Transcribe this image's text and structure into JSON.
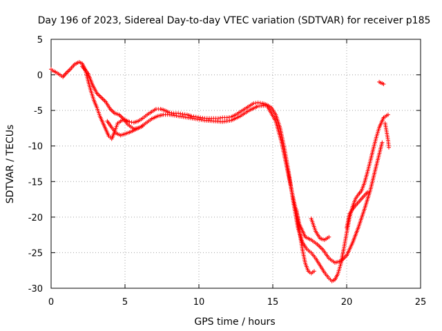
{
  "chart_data": {
    "type": "scatter",
    "title": "Day 196 of 2023, Sidereal Day-to-day VTEC variation (SDTVAR) for receiver p185",
    "xlabel": "GPS time / hours",
    "ylabel": "SDTVAR / TECUs",
    "xlim": [
      0,
      25
    ],
    "ylim": [
      -30,
      5
    ],
    "xticks": [
      "0",
      "5",
      "10",
      "15",
      "20",
      "25"
    ],
    "yticks": [
      "5",
      "0",
      "-5",
      "-10",
      "-15",
      "-20",
      "-25",
      "-30"
    ],
    "grid": true,
    "marker": "+",
    "color": "#ff0000",
    "series": [
      {
        "x": [
          0.0,
          0.1,
          0.3,
          0.6,
          0.8,
          1.0,
          1.3,
          1.6,
          1.9,
          2.1,
          2.3,
          2.5,
          2.7,
          2.9,
          3.1,
          3.3,
          3.6,
          3.9,
          4.1,
          4.3,
          4.5,
          4.8,
          5.0,
          5.3,
          5.6,
          5.9,
          6.2,
          6.5,
          6.8,
          7.1,
          7.4,
          7.7,
          8.0,
          8.3,
          8.6,
          8.9,
          9.2,
          9.5,
          9.8,
          10.1,
          10.4,
          10.7,
          11.0,
          11.3,
          11.6,
          11.9,
          12.2,
          12.5,
          12.8,
          13.1,
          13.4,
          13.7,
          14.0,
          14.3,
          14.6,
          14.9,
          15.2,
          15.5,
          15.8,
          16.1,
          16.4,
          16.7,
          17.0,
          17.3,
          17.6,
          17.9,
          18.2,
          18.5,
          18.8,
          19.0,
          19.2,
          19.4,
          19.6,
          19.8,
          20.0,
          20.2,
          20.4,
          20.6,
          20.8,
          21.0,
          21.2,
          21.4,
          21.6,
          21.8,
          22.0,
          22.2,
          22.5,
          22.8
        ],
        "y": [
          0.8,
          0.6,
          0.4,
          0.0,
          -0.3,
          0.2,
          0.8,
          1.5,
          1.8,
          1.6,
          0.8,
          -0.8,
          -2.3,
          -3.6,
          -4.6,
          -5.8,
          -7.2,
          -8.6,
          -9.0,
          -8.0,
          -6.8,
          -6.4,
          -6.3,
          -6.6,
          -6.7,
          -6.5,
          -6.1,
          -5.6,
          -5.2,
          -4.8,
          -4.8,
          -5.0,
          -5.3,
          -5.4,
          -5.4,
          -5.5,
          -5.6,
          -5.8,
          -5.9,
          -6.0,
          -6.1,
          -6.1,
          -6.1,
          -6.1,
          -6.0,
          -6.0,
          -5.9,
          -5.6,
          -5.2,
          -4.8,
          -4.4,
          -4.0,
          -3.9,
          -4.0,
          -4.2,
          -4.6,
          -5.6,
          -7.5,
          -10.5,
          -14.0,
          -18.0,
          -21.5,
          -23.5,
          -24.5,
          -25.0,
          -25.8,
          -26.8,
          -27.8,
          -28.6,
          -29.0,
          -28.8,
          -28.0,
          -26.6,
          -24.5,
          -22.2,
          -20.0,
          -18.5,
          -17.4,
          -16.8,
          -16.3,
          -15.2,
          -13.7,
          -12.1,
          -10.4,
          -8.8,
          -7.4,
          -6.0,
          -5.6
        ]
      },
      {
        "x": [
          2.1,
          2.5,
          2.8,
          3.1,
          3.4,
          3.7,
          4.0,
          4.3,
          4.6,
          4.9,
          5.2,
          5.6,
          6.0,
          6.4,
          6.8,
          7.2,
          7.6,
          8.0,
          8.6,
          9.2,
          9.8,
          10.4,
          11.0,
          11.6,
          12.2,
          12.8,
          13.4,
          14.0,
          14.6,
          15.2,
          15.6,
          16.0,
          16.4,
          16.8,
          17.2,
          17.6,
          18.0,
          18.4,
          18.8,
          19.2,
          19.6,
          20.0,
          20.4,
          20.8,
          21.2,
          21.6,
          22.0,
          22.4
        ],
        "y": [
          1.2,
          0.2,
          -1.4,
          -2.6,
          -3.2,
          -3.8,
          -4.8,
          -5.4,
          -5.6,
          -6.2,
          -7.0,
          -7.6,
          -7.4,
          -6.8,
          -6.2,
          -5.8,
          -5.6,
          -5.6,
          -5.8,
          -6.0,
          -6.2,
          -6.4,
          -6.5,
          -6.6,
          -6.4,
          -5.8,
          -5.0,
          -4.4,
          -4.3,
          -6.5,
          -9.5,
          -13.5,
          -17.5,
          -21.0,
          -22.8,
          -23.2,
          -23.8,
          -24.6,
          -25.8,
          -26.4,
          -26.2,
          -25.4,
          -23.6,
          -21.4,
          -18.9,
          -16.2,
          -12.8,
          -9.5
        ]
      },
      {
        "x": [
          3.8,
          4.1,
          4.4,
          4.7,
          5.0,
          5.4,
          5.8,
          6.2
        ],
        "y": [
          -6.5,
          -7.4,
          -8.2,
          -8.5,
          -8.3,
          -8.0,
          -7.6,
          -7.2
        ]
      },
      {
        "x": [
          16.6,
          16.8,
          17.0,
          17.2,
          17.4,
          17.6,
          17.8
        ],
        "y": [
          -19.0,
          -22.0,
          -24.5,
          -26.5,
          -27.6,
          -27.9,
          -27.6
        ]
      },
      {
        "x": [
          22.2,
          22.3,
          22.4,
          22.5
        ],
        "y": [
          -1.0,
          -1.1,
          -1.2,
          -1.3
        ]
      },
      {
        "x": [
          22.6,
          22.7,
          22.8,
          22.85
        ],
        "y": [
          -6.8,
          -8.0,
          -9.2,
          -10.2
        ]
      },
      {
        "x": [
          20.0,
          20.2,
          20.5,
          20.8,
          21.1,
          21.4
        ],
        "y": [
          -21.5,
          -19.5,
          -18.6,
          -17.9,
          -17.2,
          -16.5
        ]
      },
      {
        "x": [
          17.6,
          17.9,
          18.2,
          18.5,
          18.8
        ],
        "y": [
          -20.2,
          -22.0,
          -23.0,
          -23.2,
          -22.8
        ]
      }
    ]
  }
}
